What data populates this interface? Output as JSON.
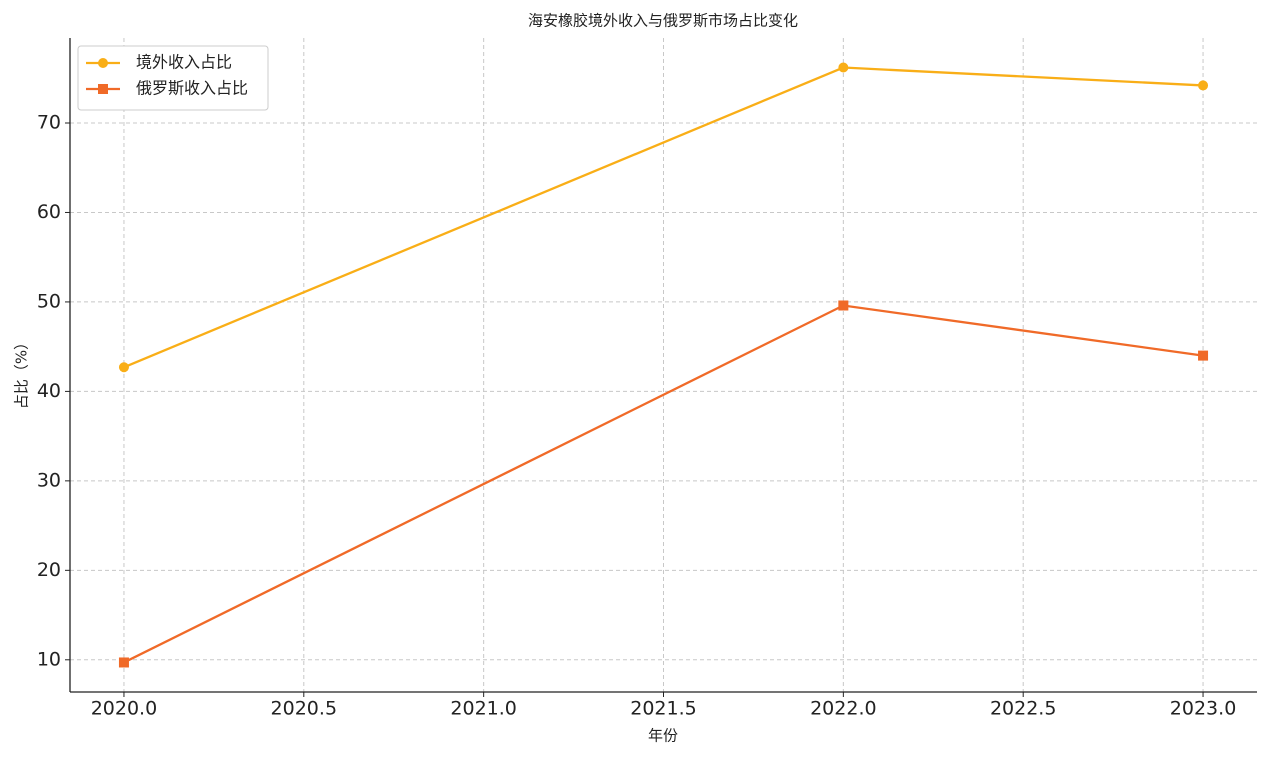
{
  "chart_data": {
    "type": "line",
    "title": "海安橡胶境外收入与俄罗斯市场占比变化",
    "x_label": "年份",
    "y_label": "占比（%）",
    "x": [
      2020,
      2022,
      2023
    ],
    "series": [
      {
        "name": "境外收入占比",
        "color": "#f9ae17",
        "marker": "circle",
        "values": [
          42.7,
          76.2,
          74.2
        ]
      },
      {
        "name": "俄罗斯收入占比",
        "color": "#f06a28",
        "marker": "square",
        "values": [
          9.7,
          49.6,
          44.0
        ]
      }
    ],
    "xlim": [
      2019.85,
      2023.15
    ],
    "xticks": [
      {
        "value": 2020,
        "label": "2020.0"
      },
      {
        "value": 2020.5,
        "label": "2020.5"
      },
      {
        "value": 2021,
        "label": "2021.0"
      },
      {
        "value": 2021.5,
        "label": "2021.5"
      },
      {
        "value": 2022,
        "label": "2022.0"
      },
      {
        "value": 2022.5,
        "label": "2022.5"
      },
      {
        "value": 2023,
        "label": "2023.0"
      }
    ],
    "ylim": [
      6.4,
      79.5
    ],
    "yticks": [
      10,
      20,
      30,
      40,
      50,
      60,
      70
    ],
    "grid": true,
    "legend": "upper left"
  }
}
